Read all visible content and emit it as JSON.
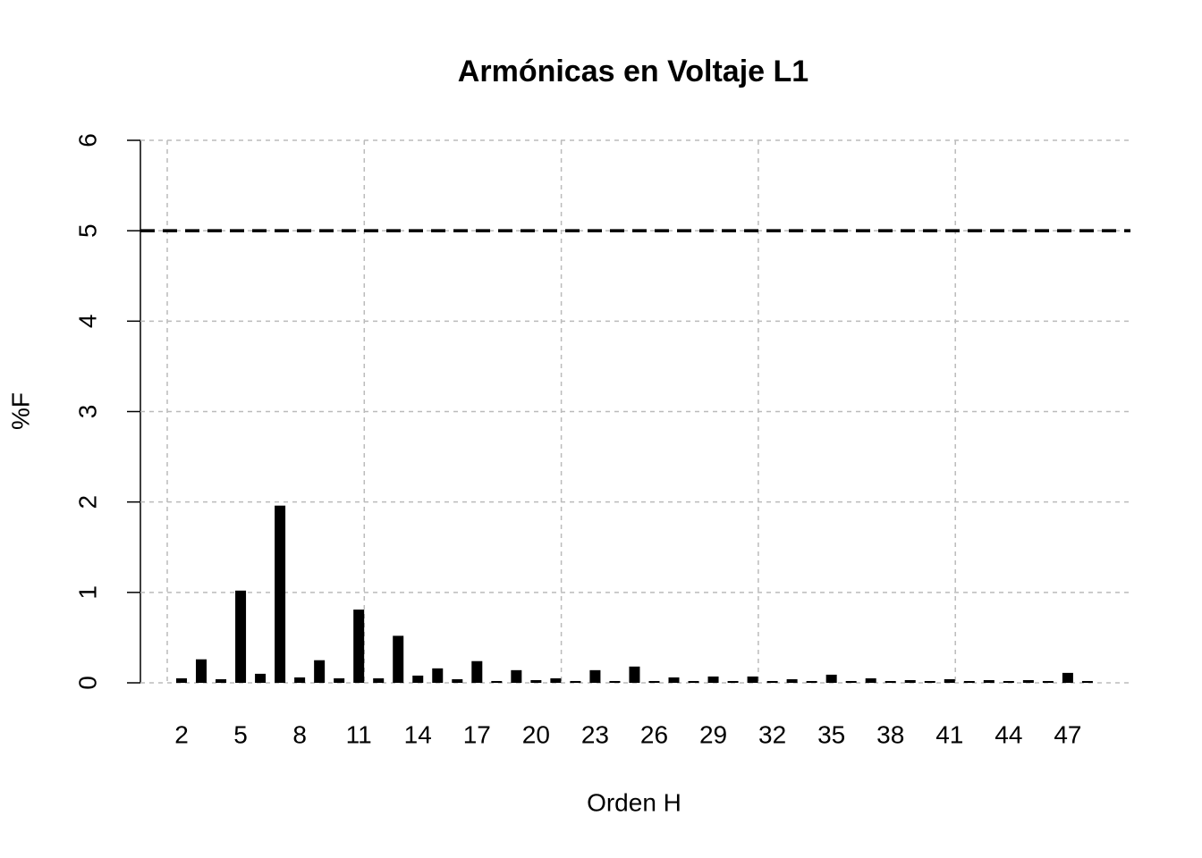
{
  "chart_data": {
    "type": "bar",
    "title": "Armónicas en Voltaje L1",
    "x_label": "Orden H",
    "y_label": "%F",
    "categories": [
      2,
      null,
      null,
      5,
      null,
      null,
      8,
      null,
      null,
      11,
      null,
      null,
      14,
      null,
      null,
      17,
      null,
      null,
      20,
      null,
      null,
      23,
      null,
      null,
      26,
      null,
      null,
      29,
      null,
      null,
      32,
      null,
      null,
      35,
      null,
      null,
      38,
      null,
      null,
      41,
      null,
      null,
      44,
      null,
      null,
      47,
      null
    ],
    "values": [
      0.05,
      0.26,
      0.04,
      1.02,
      0.1,
      1.96,
      0.06,
      0.25,
      0.05,
      0.81,
      0.05,
      0.52,
      0.08,
      0.16,
      0.04,
      0.24,
      0.02,
      0.14,
      0.03,
      0.05,
      0.02,
      0.14,
      0.02,
      0.18,
      0.02,
      0.06,
      0.02,
      0.07,
      0.02,
      0.07,
      0.02,
      0.04,
      0.02,
      0.09,
      0.02,
      0.05,
      0.02,
      0.03,
      0.02,
      0.04,
      0.02,
      0.03,
      0.02,
      0.03,
      0.02,
      0.11,
      0.02
    ],
    "color": "#000000",
    "ylim": [
      0,
      6
    ],
    "yticks": [
      0,
      1,
      2,
      3,
      4,
      5,
      6
    ],
    "grid": true,
    "reference_line": 5
  }
}
